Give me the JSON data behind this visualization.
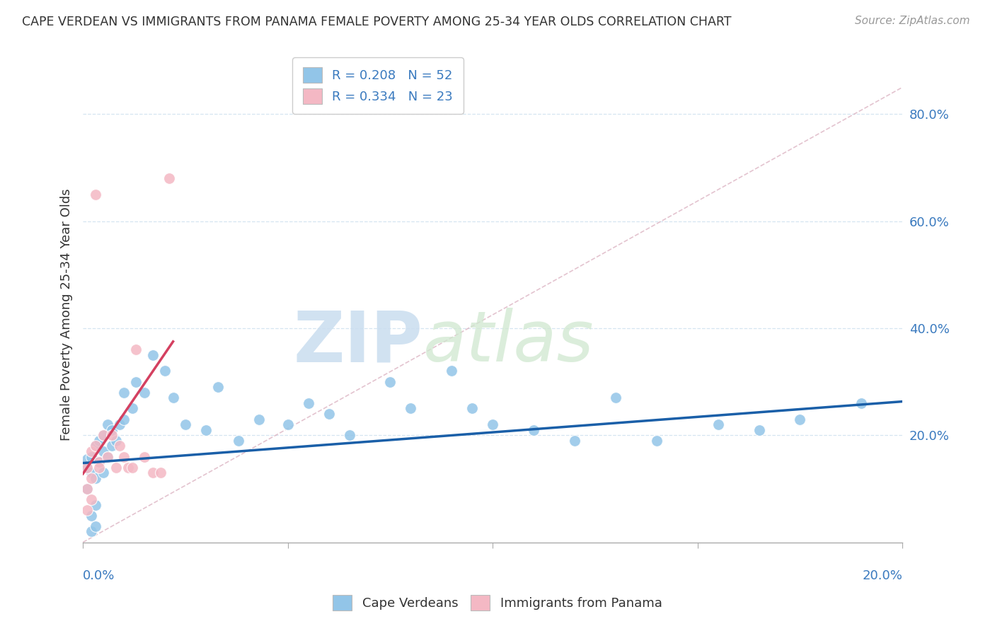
{
  "title": "CAPE VERDEAN VS IMMIGRANTS FROM PANAMA FEMALE POVERTY AMONG 25-34 YEAR OLDS CORRELATION CHART",
  "source": "Source: ZipAtlas.com",
  "ylabel": "Female Poverty Among 25-34 Year Olds",
  "xlim": [
    0,
    0.2
  ],
  "ylim": [
    0,
    0.85
  ],
  "legend1_label": "R = 0.208   N = 52",
  "legend2_label": "R = 0.334   N = 23",
  "blue_color": "#92c5e8",
  "pink_color": "#f4b8c4",
  "blue_line_color": "#1a5fa8",
  "pink_line_color": "#d44060",
  "ref_line_color": "#c8d8e8",
  "watermark_zip": "ZIP",
  "watermark_atlas": "atlas",
  "blue_x": [
    0.001,
    0.001,
    0.001,
    0.002,
    0.002,
    0.002,
    0.002,
    0.003,
    0.003,
    0.003,
    0.003,
    0.004,
    0.004,
    0.005,
    0.005,
    0.005,
    0.006,
    0.006,
    0.007,
    0.007,
    0.008,
    0.009,
    0.01,
    0.01,
    0.012,
    0.013,
    0.015,
    0.017,
    0.02,
    0.022,
    0.025,
    0.03,
    0.033,
    0.038,
    0.043,
    0.05,
    0.055,
    0.06,
    0.065,
    0.075,
    0.08,
    0.09,
    0.095,
    0.1,
    0.11,
    0.12,
    0.13,
    0.14,
    0.155,
    0.165,
    0.175,
    0.19
  ],
  "blue_y": [
    0.155,
    0.14,
    0.1,
    0.16,
    0.13,
    0.05,
    0.02,
    0.18,
    0.12,
    0.07,
    0.03,
    0.19,
    0.15,
    0.2,
    0.17,
    0.13,
    0.22,
    0.16,
    0.21,
    0.18,
    0.19,
    0.22,
    0.28,
    0.23,
    0.25,
    0.3,
    0.28,
    0.35,
    0.32,
    0.27,
    0.22,
    0.21,
    0.29,
    0.19,
    0.23,
    0.22,
    0.26,
    0.24,
    0.2,
    0.3,
    0.25,
    0.32,
    0.25,
    0.22,
    0.21,
    0.19,
    0.27,
    0.19,
    0.22,
    0.21,
    0.23,
    0.26
  ],
  "pink_x": [
    0.001,
    0.001,
    0.001,
    0.002,
    0.002,
    0.002,
    0.003,
    0.003,
    0.004,
    0.004,
    0.005,
    0.006,
    0.007,
    0.008,
    0.009,
    0.01,
    0.011,
    0.012,
    0.013,
    0.015,
    0.017,
    0.019,
    0.021
  ],
  "pink_y": [
    0.14,
    0.1,
    0.06,
    0.17,
    0.12,
    0.08,
    0.18,
    0.65,
    0.15,
    0.14,
    0.2,
    0.16,
    0.2,
    0.14,
    0.18,
    0.16,
    0.14,
    0.14,
    0.36,
    0.16,
    0.13,
    0.13,
    0.68
  ],
  "blue_trend_x": [
    0.0,
    0.2
  ],
  "blue_trend_y": [
    0.148,
    0.263
  ],
  "pink_trend_x": [
    0.0,
    0.022
  ],
  "pink_trend_y": [
    0.128,
    0.375
  ]
}
